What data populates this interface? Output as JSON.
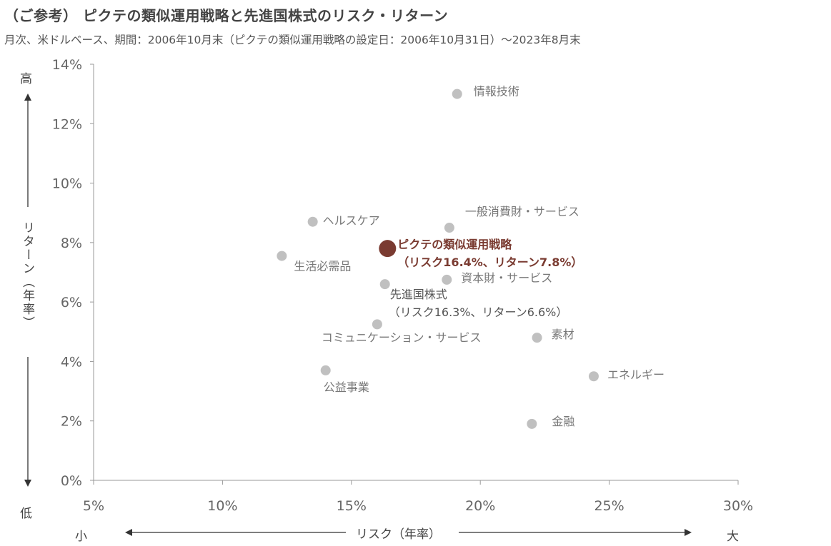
{
  "title": "（ご参考） ピクテの類似運用戦略と先進国株式のリスク・リターン",
  "subtitle": "月次、米ドルベース、期間：2006年10月末（ピクテの類似運用戦略の設定日：2006年10月31日）〜2023年8月末",
  "y_axis": {
    "high": "高",
    "low": "低",
    "label": "リターン（年率）"
  },
  "x_axis": {
    "small": "小",
    "large": "大",
    "label": "リスク（年率）"
  },
  "colors": {
    "point": "#c0c0c0",
    "highlight": "#7a3b31",
    "axis": "#999999",
    "arrow": "#333333"
  },
  "chart_data": {
    "type": "scatter",
    "xlabel": "リスク（年率）",
    "ylabel": "リターン（年率）",
    "xlim": [
      5,
      30
    ],
    "ylim": [
      0,
      14
    ],
    "x_ticks": [
      "5%",
      "10%",
      "15%",
      "20%",
      "25%",
      "30%"
    ],
    "y_ticks": [
      "0%",
      "2%",
      "4%",
      "6%",
      "8%",
      "10%",
      "12%",
      "14%"
    ],
    "grid": false,
    "points": [
      {
        "name": "情報技術",
        "x": 19.1,
        "y": 13.0,
        "highlight": false
      },
      {
        "name": "一般消費財・サービス",
        "x": 18.8,
        "y": 8.5,
        "highlight": false
      },
      {
        "name": "ヘルスケア",
        "x": 13.5,
        "y": 8.7,
        "highlight": false
      },
      {
        "name": "ピクテの類似運用戦略",
        "sublabel": "（リスク16.4%、リターン7.8%）",
        "x": 16.4,
        "y": 7.8,
        "highlight": true
      },
      {
        "name": "生活必需品",
        "x": 12.3,
        "y": 7.55,
        "highlight": false
      },
      {
        "name": "資本財・サービス",
        "x": 18.7,
        "y": 6.75,
        "highlight": false
      },
      {
        "name": "先進国株式",
        "sublabel": "（リスク16.3%、リターン6.6%）",
        "x": 16.3,
        "y": 6.6,
        "highlight": false
      },
      {
        "name": "コミュニケーション・サービス",
        "x": 16.0,
        "y": 5.25,
        "highlight": false
      },
      {
        "name": "素材",
        "x": 22.2,
        "y": 4.8,
        "highlight": false
      },
      {
        "name": "公益事業",
        "x": 14.0,
        "y": 3.7,
        "highlight": false
      },
      {
        "name": "エネルギー",
        "x": 24.4,
        "y": 3.5,
        "highlight": false
      },
      {
        "name": "金融",
        "x": 22.0,
        "y": 1.9,
        "highlight": false
      }
    ]
  }
}
